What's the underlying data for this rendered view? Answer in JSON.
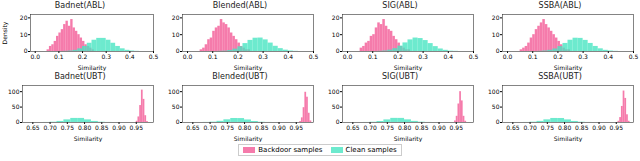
{
  "chart_data": [
    {
      "type": "histogram",
      "title": "Badnet(ABL)",
      "xlabel": "Similarity",
      "ylabel": "Density",
      "xlim": [
        -0.02,
        0.5
      ],
      "xticks": [
        {
          "value": 0,
          "label": "0.0"
        },
        0.1,
        0.2,
        0.3,
        0.4,
        0.5
      ],
      "ylim": [
        0,
        22
      ],
      "yticks": [
        0,
        10,
        20
      ],
      "legend": "bottom",
      "series": [
        {
          "name": "Backdoor samples",
          "color": "#f25a96",
          "bins": [
            0.05,
            0.06,
            0.07,
            0.08,
            0.09,
            0.1,
            0.11,
            0.12,
            0.13,
            0.14,
            0.15,
            0.16,
            0.17,
            0.18,
            0.19,
            0.2,
            0.21,
            0.22,
            0.23,
            0.24,
            0.25
          ],
          "values": [
            1,
            3,
            4,
            6,
            9,
            11,
            13,
            16,
            18,
            15,
            19,
            14,
            12,
            10,
            8,
            6,
            4,
            3,
            2,
            1
          ]
        },
        {
          "name": "Clean samples",
          "color": "#48e5c2",
          "bins": [
            0.12,
            0.14,
            0.16,
            0.18,
            0.2,
            0.22,
            0.24,
            0.26,
            0.28,
            0.3,
            0.32,
            0.34,
            0.36,
            0.38,
            0.4,
            0.42,
            0.44
          ],
          "values": [
            0.1,
            0.3,
            0.7,
            1.6,
            3.0,
            4.9,
            6.7,
            7.8,
            7.8,
            6.7,
            4.9,
            3.0,
            1.6,
            0.7,
            0.3,
            0.1
          ]
        }
      ]
    },
    {
      "type": "histogram",
      "title": "Blended(ABL)",
      "xlabel": "Similarity",
      "xlim": [
        -0.02,
        0.5
      ],
      "xticks": [
        {
          "value": 0,
          "label": "0.0"
        },
        0.1,
        0.2,
        0.3,
        0.4,
        0.5
      ],
      "ylim": [
        0,
        22
      ],
      "yticks": [
        0,
        10,
        20
      ],
      "legend": "bottom",
      "series": [
        {
          "name": "Backdoor samples",
          "color": "#f25a96",
          "bins": [
            0.05,
            0.06,
            0.07,
            0.08,
            0.09,
            0.1,
            0.11,
            0.12,
            0.13,
            0.14,
            0.15,
            0.16,
            0.17,
            0.18,
            0.19,
            0.2,
            0.21,
            0.22,
            0.23,
            0.24,
            0.25
          ],
          "values": [
            1,
            2,
            4,
            7,
            8,
            12,
            14,
            15,
            19,
            17,
            16,
            14,
            11,
            9,
            7,
            5,
            3,
            2,
            1,
            1
          ]
        },
        {
          "name": "Clean samples",
          "color": "#48e5c2",
          "bins": [
            0.12,
            0.14,
            0.16,
            0.18,
            0.2,
            0.22,
            0.24,
            0.26,
            0.28,
            0.3,
            0.32,
            0.34,
            0.36,
            0.38,
            0.4,
            0.42,
            0.44
          ],
          "values": [
            0.1,
            0.2,
            0.6,
            1.4,
            2.8,
            4.7,
            6.6,
            7.9,
            8.0,
            6.9,
            5.0,
            3.1,
            1.7,
            0.8,
            0.3,
            0.1
          ]
        }
      ]
    },
    {
      "type": "histogram",
      "title": "SIG(ABL)",
      "xlabel": "Similarity",
      "xlim": [
        -0.02,
        0.5
      ],
      "xticks": [
        {
          "value": 0,
          "label": "0.0"
        },
        0.1,
        0.2,
        0.3,
        0.4,
        0.5
      ],
      "ylim": [
        0,
        22
      ],
      "yticks": [
        0,
        10,
        20
      ],
      "legend": "bottom",
      "series": [
        {
          "name": "Backdoor samples",
          "color": "#f25a96",
          "bins": [
            0.05,
            0.06,
            0.07,
            0.08,
            0.09,
            0.1,
            0.11,
            0.12,
            0.13,
            0.14,
            0.15,
            0.16,
            0.17,
            0.18,
            0.19,
            0.2,
            0.21,
            0.22,
            0.23,
            0.24,
            0.25
          ],
          "values": [
            2,
            3,
            5,
            6,
            9,
            10,
            14,
            17,
            16,
            19,
            15,
            13,
            12,
            9,
            7,
            5,
            3,
            2,
            1,
            1
          ]
        },
        {
          "name": "Clean samples",
          "color": "#48e5c2",
          "bins": [
            0.12,
            0.14,
            0.16,
            0.18,
            0.2,
            0.22,
            0.24,
            0.26,
            0.28,
            0.3,
            0.32,
            0.34,
            0.36,
            0.38,
            0.4,
            0.42,
            0.44
          ],
          "values": [
            0.1,
            0.3,
            0.8,
            1.7,
            3.2,
            5.1,
            6.9,
            8.0,
            7.7,
            6.5,
            4.7,
            2.9,
            1.5,
            0.7,
            0.2,
            0.1
          ]
        }
      ]
    },
    {
      "type": "histogram",
      "title": "SSBA(ABL)",
      "xlabel": "Similarity",
      "xlim": [
        -0.02,
        0.5
      ],
      "xticks": [
        {
          "value": 0,
          "label": "0.0"
        },
        0.1,
        0.2,
        0.3,
        0.4,
        0.5
      ],
      "ylim": [
        0,
        22
      ],
      "yticks": [
        0,
        10,
        20
      ],
      "legend": "bottom",
      "series": [
        {
          "name": "Backdoor samples",
          "color": "#f25a96",
          "bins": [
            0.05,
            0.06,
            0.07,
            0.08,
            0.09,
            0.1,
            0.11,
            0.12,
            0.13,
            0.14,
            0.15,
            0.16,
            0.17,
            0.18,
            0.19,
            0.2,
            0.21,
            0.22,
            0.23,
            0.24,
            0.25
          ],
          "values": [
            1,
            2,
            3,
            5,
            8,
            10,
            13,
            15,
            17,
            19,
            16,
            14,
            12,
            10,
            8,
            6,
            4,
            2,
            1,
            1
          ]
        },
        {
          "name": "Clean samples",
          "color": "#48e5c2",
          "bins": [
            0.12,
            0.14,
            0.16,
            0.18,
            0.2,
            0.22,
            0.24,
            0.26,
            0.28,
            0.3,
            0.32,
            0.34,
            0.36,
            0.38,
            0.4,
            0.42,
            0.44
          ],
          "values": [
            0.1,
            0.3,
            0.7,
            1.5,
            2.9,
            4.8,
            6.7,
            7.9,
            7.8,
            6.6,
            4.8,
            3.0,
            1.6,
            0.7,
            0.3,
            0.1
          ]
        }
      ]
    },
    {
      "type": "histogram",
      "title": "Badnet(UBT)",
      "xlabel": "Similarity",
      "xlim": [
        0.62,
        1.0
      ],
      "xticks": [
        0.65,
        {
          "value": 0.7,
          "label": "0.70"
        },
        0.75,
        {
          "value": 0.8,
          "label": "0.80"
        },
        0.85,
        {
          "value": 0.9,
          "label": "0.90"
        },
        0.95
      ],
      "ylim": [
        0,
        120
      ],
      "yticks": [
        0,
        50,
        100
      ],
      "legend": "bottom",
      "series": [
        {
          "name": "Backdoor samples",
          "color": "#f25a96",
          "bins": [
            0.95,
            0.955,
            0.96,
            0.965,
            0.97,
            0.975,
            0.98,
            0.985
          ],
          "values": [
            4,
            18,
            55,
            105,
            75,
            22,
            3
          ]
        },
        {
          "name": "Clean samples",
          "color": "#48e5c2",
          "bins": [
            0.68,
            0.7,
            0.72,
            0.74,
            0.76,
            0.78,
            0.8,
            0.82,
            0.84,
            0.86,
            0.88
          ],
          "values": [
            0.2,
            0.9,
            3.5,
            8.5,
            13.2,
            13.2,
            8.5,
            3.5,
            0.9,
            0.2
          ]
        }
      ]
    },
    {
      "type": "histogram",
      "title": "Blended(UBT)",
      "xlabel": "Similarity",
      "xlim": [
        0.62,
        1.0
      ],
      "xticks": [
        0.65,
        {
          "value": 0.7,
          "label": "0.70"
        },
        0.75,
        {
          "value": 0.8,
          "label": "0.80"
        },
        0.85,
        {
          "value": 0.9,
          "label": "0.90"
        },
        0.95
      ],
      "ylim": [
        0,
        120
      ],
      "yticks": [
        0,
        50,
        100
      ],
      "legend": "bottom",
      "series": [
        {
          "name": "Backdoor samples",
          "color": "#f25a96",
          "bins": [
            0.96,
            0.965,
            0.97,
            0.975,
            0.98,
            0.985,
            0.99,
            0.995
          ],
          "values": [
            3,
            15,
            48,
            98,
            82,
            30,
            5
          ]
        },
        {
          "name": "Clean samples",
          "color": "#48e5c2",
          "bins": [
            0.68,
            0.7,
            0.72,
            0.74,
            0.76,
            0.78,
            0.8,
            0.82,
            0.84,
            0.86,
            0.88
          ],
          "values": [
            0.3,
            1.1,
            3.8,
            8.7,
            13.0,
            12.8,
            8.2,
            3.3,
            0.8,
            0.2
          ]
        }
      ]
    },
    {
      "type": "histogram",
      "title": "SIG(UBT)",
      "xlabel": "Similarity",
      "xlim": [
        0.62,
        1.0
      ],
      "xticks": [
        0.65,
        {
          "value": 0.7,
          "label": "0.70"
        },
        0.75,
        {
          "value": 0.8,
          "label": "0.80"
        },
        0.85,
        {
          "value": 0.9,
          "label": "0.90"
        },
        0.95
      ],
      "ylim": [
        0,
        120
      ],
      "yticks": [
        0,
        50,
        100
      ],
      "legend": "bottom",
      "series": [
        {
          "name": "Backdoor samples",
          "color": "#f25a96",
          "bins": [
            0.945,
            0.95,
            0.955,
            0.96,
            0.965,
            0.97,
            0.975,
            0.98
          ],
          "values": [
            5,
            20,
            60,
            100,
            70,
            20,
            4
          ]
        },
        {
          "name": "Clean samples",
          "color": "#48e5c2",
          "bins": [
            0.68,
            0.7,
            0.72,
            0.74,
            0.76,
            0.78,
            0.8,
            0.82,
            0.84,
            0.86,
            0.88
          ],
          "values": [
            0.2,
            0.8,
            3.3,
            8.4,
            13.4,
            13.3,
            8.6,
            3.6,
            1.0,
            0.2
          ]
        }
      ]
    },
    {
      "type": "histogram",
      "title": "SSBA(UBT)",
      "xlabel": "Similarity",
      "xlim": [
        0.62,
        1.0
      ],
      "xticks": [
        0.65,
        {
          "value": 0.7,
          "label": "0.70"
        },
        0.75,
        {
          "value": 0.8,
          "label": "0.80"
        },
        0.85,
        {
          "value": 0.9,
          "label": "0.90"
        },
        0.95
      ],
      "ylim": [
        0,
        120
      ],
      "yticks": [
        0,
        50,
        100
      ],
      "legend": "bottom",
      "series": [
        {
          "name": "Backdoor samples",
          "color": "#f25a96",
          "bins": [
            0.955,
            0.96,
            0.965,
            0.97,
            0.975,
            0.98,
            0.985,
            0.99
          ],
          "values": [
            4,
            16,
            52,
            102,
            78,
            25,
            4
          ]
        },
        {
          "name": "Clean samples",
          "color": "#48e5c2",
          "bins": [
            0.68,
            0.7,
            0.72,
            0.74,
            0.76,
            0.78,
            0.8,
            0.82,
            0.84,
            0.86,
            0.88
          ],
          "values": [
            0.2,
            1.0,
            3.6,
            8.6,
            13.1,
            13.0,
            8.4,
            3.4,
            0.9,
            0.2
          ]
        }
      ]
    }
  ]
}
